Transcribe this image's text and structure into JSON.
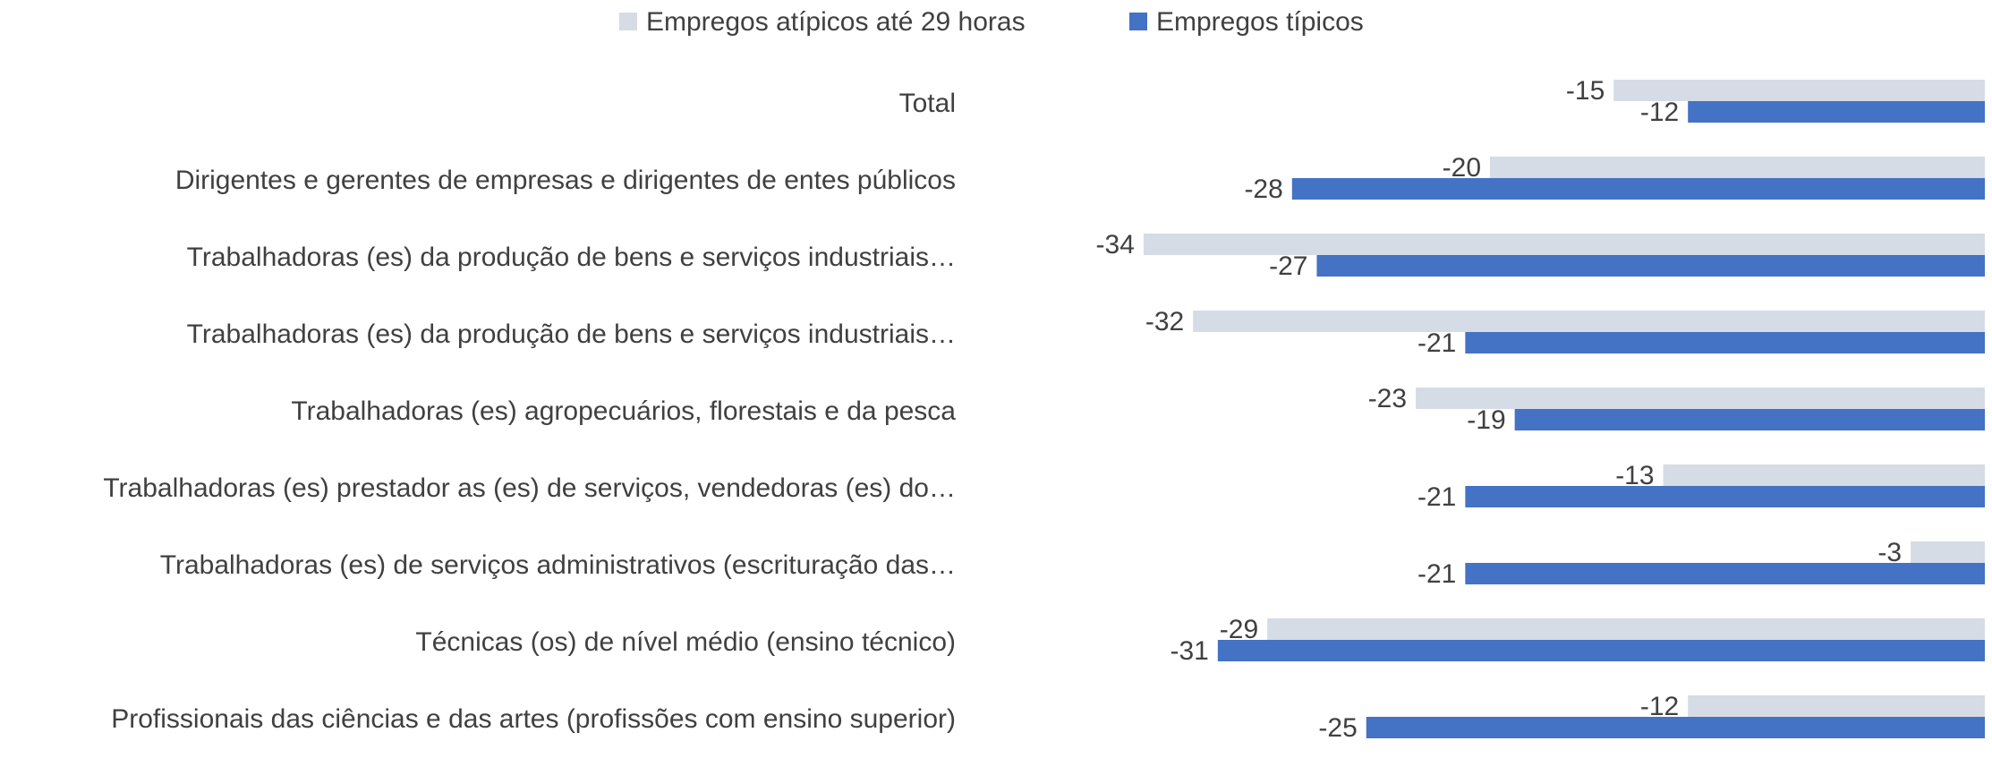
{
  "chart_data": {
    "type": "barh",
    "categories": [
      "Total",
      "Dirigentes e gerentes de empresas e dirigentes de entes públicos",
      "Trabalhadoras (es) da produção de bens e serviços industriais…",
      "Trabalhadoras (es) da produção de bens e serviços industriais…",
      "Trabalhadoras (es) agropecuários, florestais e da pesca",
      "Trabalhadoras (es) prestador as (es) de serviços, vendedoras (es) do…",
      "Trabalhadoras (es) de serviços administrativos (escrituração das…",
      "Técnicas (os) de nível médio (ensino técnico)",
      "Profissionais das ciências e das artes (profissões com ensino superior)"
    ],
    "series": [
      {
        "name": "Empregos atípicos até 29 horas",
        "color": "#d6dce5",
        "values": [
          -15,
          -20,
          -34,
          -32,
          -23,
          -13,
          -3,
          -29,
          -12
        ]
      },
      {
        "name": "Empregos típicos",
        "color": "#4472c4",
        "values": [
          -12,
          -28,
          -27,
          -21,
          -19,
          -21,
          -21,
          -31,
          -25
        ]
      }
    ],
    "xlim": [
      -40,
      0
    ],
    "legend": "top"
  }
}
